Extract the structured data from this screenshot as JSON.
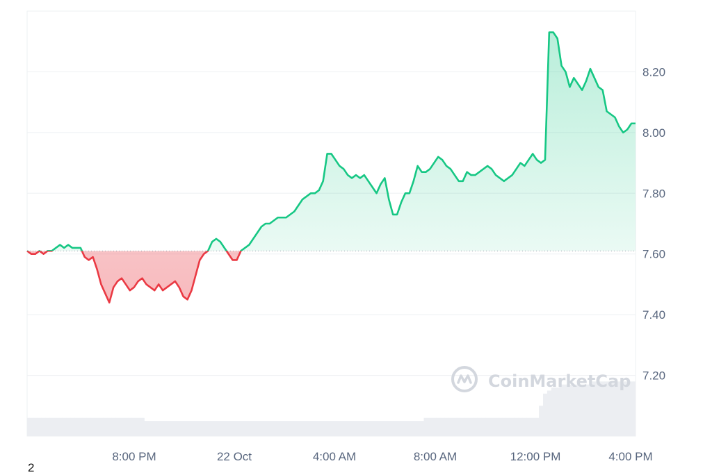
{
  "chart_data": {
    "type": "area",
    "title": "",
    "xlabel": "",
    "ylabel": "",
    "x_ticks": [
      "8:00 PM",
      "22 Oct",
      "4:00 AM",
      "8:00 AM",
      "12:00 PM",
      "4:00 PM"
    ],
    "y_ticks": [
      "7.20",
      "7.40",
      "7.60",
      "7.80",
      "8.00",
      "8.20"
    ],
    "ylim": [
      7.0,
      8.4
    ],
    "baseline": 7.61,
    "grid": true,
    "legend": "none",
    "colors": {
      "up_line": "#16c784",
      "down_line": "#ea3943",
      "volume": "#eceef2",
      "baseline": "#9aa3ae"
    },
    "series": [
      {
        "values": [
          7.61,
          7.6,
          7.6,
          7.61,
          7.6,
          7.61,
          7.61,
          7.62,
          7.63,
          7.62,
          7.63,
          7.62,
          7.62,
          7.62,
          7.59,
          7.58,
          7.59,
          7.55,
          7.5,
          7.47,
          7.44,
          7.49,
          7.51,
          7.52,
          7.5,
          7.48,
          7.49,
          7.51,
          7.52,
          7.5,
          7.49,
          7.48,
          7.5,
          7.48,
          7.49,
          7.5,
          7.51,
          7.49,
          7.46,
          7.45,
          7.48,
          7.53,
          7.58,
          7.6,
          7.61,
          7.64,
          7.65,
          7.64,
          7.62,
          7.6,
          7.58,
          7.58,
          7.61,
          7.62,
          7.63,
          7.65,
          7.67,
          7.69,
          7.7,
          7.7,
          7.71,
          7.72,
          7.72,
          7.72,
          7.73,
          7.74,
          7.76,
          7.78,
          7.79,
          7.8,
          7.8,
          7.81,
          7.84,
          7.93,
          7.93,
          7.91,
          7.89,
          7.88,
          7.86,
          7.85,
          7.86,
          7.85,
          7.86,
          7.84,
          7.82,
          7.8,
          7.83,
          7.85,
          7.78,
          7.73,
          7.73,
          7.77,
          7.8,
          7.8,
          7.84,
          7.89,
          7.87,
          7.87,
          7.88,
          7.9,
          7.92,
          7.91,
          7.89,
          7.88,
          7.86,
          7.84,
          7.84,
          7.87,
          7.86,
          7.86,
          7.87,
          7.88,
          7.89,
          7.88,
          7.86,
          7.85,
          7.84,
          7.85,
          7.86,
          7.88,
          7.9,
          7.89,
          7.91,
          7.93,
          7.91,
          7.9,
          7.91,
          8.33,
          8.33,
          8.31,
          8.22,
          8.2,
          8.15,
          8.18,
          8.16,
          8.14,
          8.17,
          8.21,
          8.18,
          8.15,
          8.14,
          8.07,
          8.06,
          8.05,
          8.02,
          8.0,
          8.01,
          8.03,
          8.03
        ]
      },
      {
        "values": [
          7.06,
          7.06,
          7.06,
          7.06,
          7.06,
          7.06,
          7.06,
          7.06,
          7.06,
          7.06,
          7.06,
          7.06,
          7.06,
          7.06,
          7.06,
          7.06,
          7.06,
          7.06,
          7.06,
          7.06,
          7.06,
          7.06,
          7.06,
          7.06,
          7.06,
          7.06,
          7.06,
          7.06,
          7.06,
          7.05,
          7.05,
          7.05,
          7.05,
          7.05,
          7.05,
          7.05,
          7.05,
          7.05,
          7.05,
          7.05,
          7.05,
          7.05,
          7.05,
          7.05,
          7.05,
          7.05,
          7.05,
          7.05,
          7.05,
          7.05,
          7.05,
          7.05,
          7.05,
          7.05,
          7.05,
          7.05,
          7.05,
          7.05,
          7.05,
          7.05,
          7.05,
          7.05,
          7.05,
          7.05,
          7.05,
          7.05,
          7.05,
          7.05,
          7.05,
          7.05,
          7.05,
          7.05,
          7.05,
          7.05,
          7.05,
          7.05,
          7.05,
          7.05,
          7.05,
          7.05,
          7.05,
          7.05,
          7.05,
          7.05,
          7.05,
          7.05,
          7.05,
          7.05,
          7.05,
          7.05,
          7.05,
          7.05,
          7.05,
          7.05,
          7.05,
          7.05,
          7.05,
          7.06,
          7.06,
          7.06,
          7.06,
          7.06,
          7.06,
          7.06,
          7.06,
          7.06,
          7.06,
          7.06,
          7.06,
          7.06,
          7.06,
          7.06,
          7.06,
          7.06,
          7.06,
          7.06,
          7.06,
          7.06,
          7.06,
          7.06,
          7.06,
          7.06,
          7.06,
          7.06,
          7.06,
          7.1,
          7.14,
          7.15,
          7.16,
          7.16,
          7.17,
          7.17,
          7.17,
          7.17,
          7.17,
          7.17,
          7.17,
          7.17,
          7.18,
          7.18,
          7.18,
          7.18,
          7.18,
          7.18,
          7.18,
          7.18,
          7.18,
          7.18,
          7.18
        ]
      }
    ]
  },
  "watermark": {
    "text": "CoinMarketCap",
    "icon": "coinmarketcap-logo-icon"
  },
  "footnote": "2"
}
